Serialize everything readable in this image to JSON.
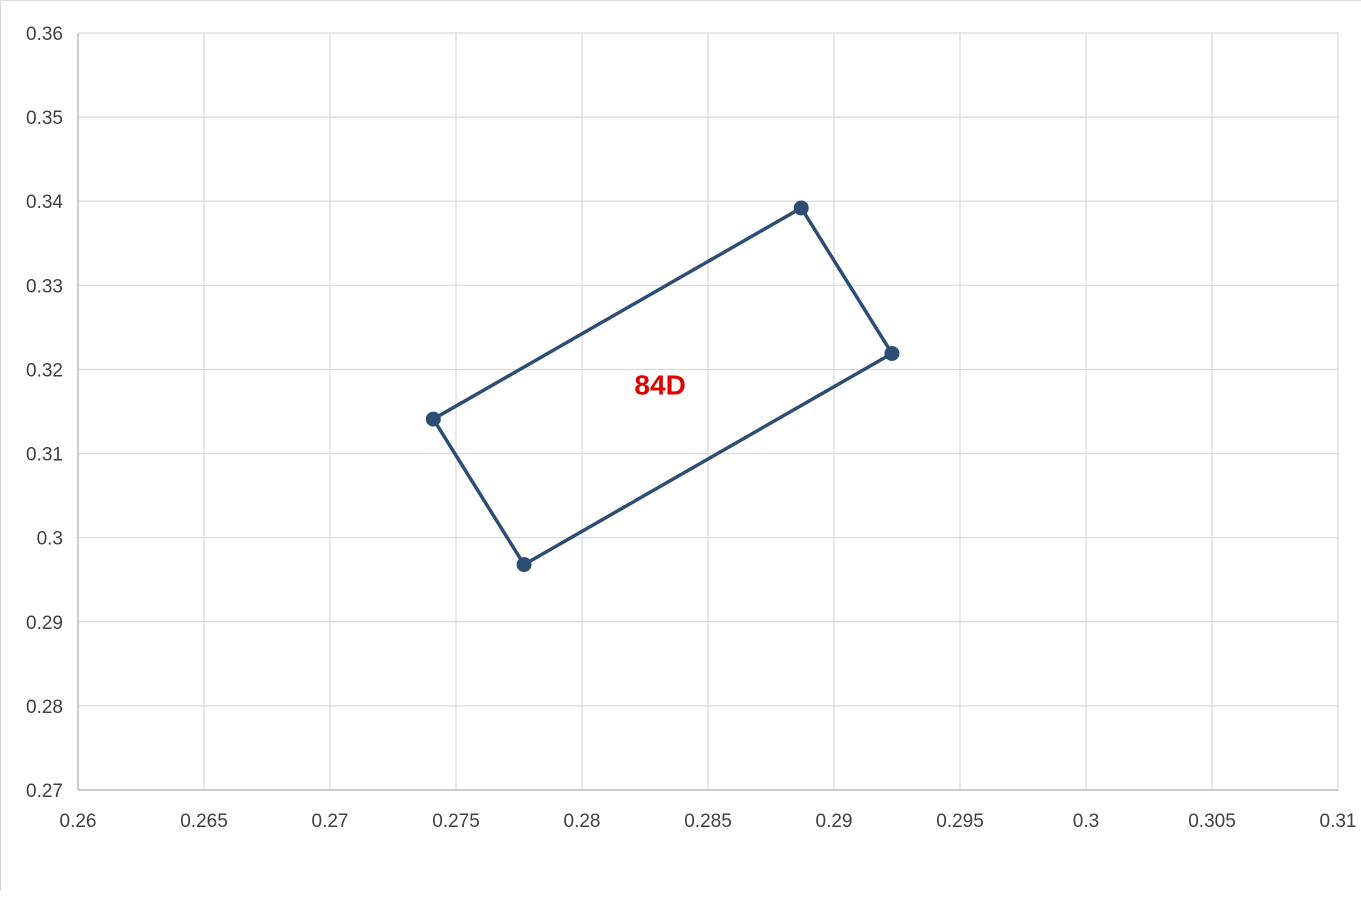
{
  "chart_data": {
    "type": "scatter",
    "title": "",
    "xlabel": "",
    "ylabel": "",
    "xlim": [
      0.26,
      0.31
    ],
    "ylim": [
      0.27,
      0.36
    ],
    "x_ticks": [
      "0.26",
      "0.265",
      "0.27",
      "0.275",
      "0.28",
      "0.285",
      "0.29",
      "0.295",
      "0.3",
      "0.305",
      "0.31"
    ],
    "y_ticks": [
      "0.27",
      "0.28",
      "0.29",
      "0.3",
      "0.31",
      "0.32",
      "0.33",
      "0.34",
      "0.35",
      "0.36"
    ],
    "grid": true,
    "legend": "none",
    "series": [
      {
        "color": "#2e4d74",
        "closed": true,
        "points": [
          {
            "x": 0.2741,
            "y": 0.3141
          },
          {
            "x": 0.2887,
            "y": 0.3392
          },
          {
            "x": 0.2923,
            "y": 0.3219
          },
          {
            "x": 0.2777,
            "y": 0.2968
          }
        ]
      }
    ],
    "annotations": [
      {
        "text": "84D",
        "x": 0.2831,
        "y": 0.3182,
        "color": "#e00000"
      }
    ]
  }
}
